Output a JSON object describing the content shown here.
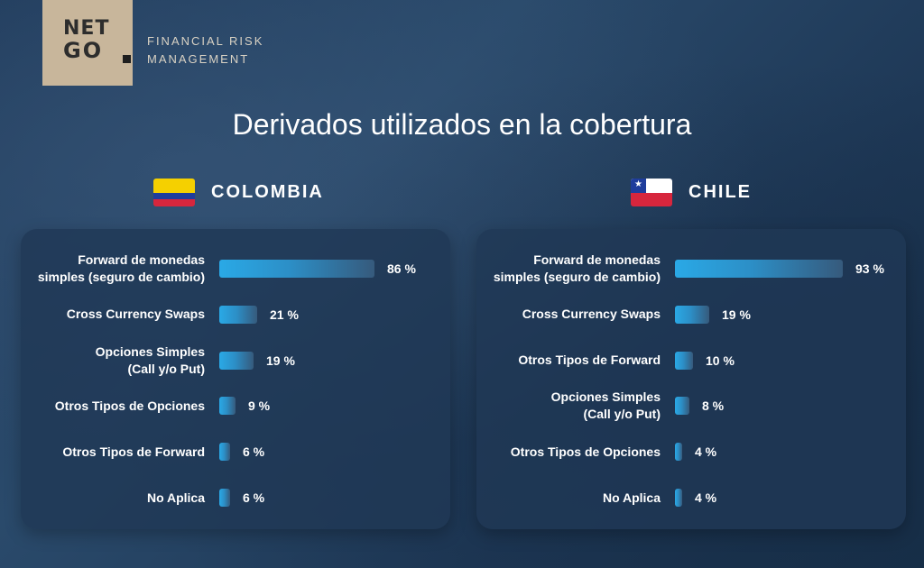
{
  "brand": {
    "logo_line1": "NET",
    "logo_line2": "GO",
    "company_line1": "FINANCIAL RISK",
    "company_line2": "MANAGEMENT",
    "logo_bg_color": "#c8b69b"
  },
  "title": "Derivados utilizados en la cobertura",
  "colors": {
    "bar_start": "#2aa9e6",
    "bar_end": "#365a7c",
    "panel": "#203856"
  },
  "chart_data": [
    {
      "type": "bar",
      "orientation": "horizontal",
      "title": "COLOMBIA",
      "flag": "colombia-flag",
      "value_suffix": " %",
      "categories": [
        "Forward de monedas simples (seguro de cambio)",
        "Cross Currency Swaps",
        "Opciones Simples (Call y/o Put)",
        "Otros Tipos de Opciones",
        "Otros Tipos de Forward",
        "No Aplica"
      ],
      "labels": [
        [
          "Forward de monedas",
          "simples (seguro de cambio)"
        ],
        [
          "Cross Currency Swaps"
        ],
        [
          "Opciones Simples",
          "(Call y/o Put)"
        ],
        [
          "Otros Tipos de Opciones"
        ],
        [
          "Otros Tipos de Forward"
        ],
        [
          "No Aplica"
        ]
      ],
      "values": [
        86,
        21,
        19,
        9,
        6,
        6
      ],
      "value_labels": [
        "86 %",
        "21 %",
        "19 %",
        "9 %",
        "6 %",
        "6 %"
      ],
      "xlim": [
        0,
        100
      ]
    },
    {
      "type": "bar",
      "orientation": "horizontal",
      "title": "CHILE",
      "flag": "chile-flag",
      "value_suffix": " %",
      "categories": [
        "Forward de monedas simples (seguro de cambio)",
        "Cross Currency Swaps",
        "Otros Tipos de Forward",
        "Opciones Simples (Call y/o Put)",
        "Otros Tipos de Opciones",
        "No Aplica"
      ],
      "labels": [
        [
          "Forward de monedas",
          "simples (seguro de cambio)"
        ],
        [
          "Cross Currency Swaps"
        ],
        [
          "Otros Tipos de Forward"
        ],
        [
          "Opciones Simples",
          "(Call y/o Put)"
        ],
        [
          "Otros Tipos de Opciones"
        ],
        [
          "No Aplica"
        ]
      ],
      "values": [
        93,
        19,
        10,
        8,
        4,
        4
      ],
      "value_labels": [
        "93 %",
        "19 %",
        "10 %",
        "8 %",
        "4 %",
        "4 %"
      ],
      "xlim": [
        0,
        100
      ]
    }
  ]
}
